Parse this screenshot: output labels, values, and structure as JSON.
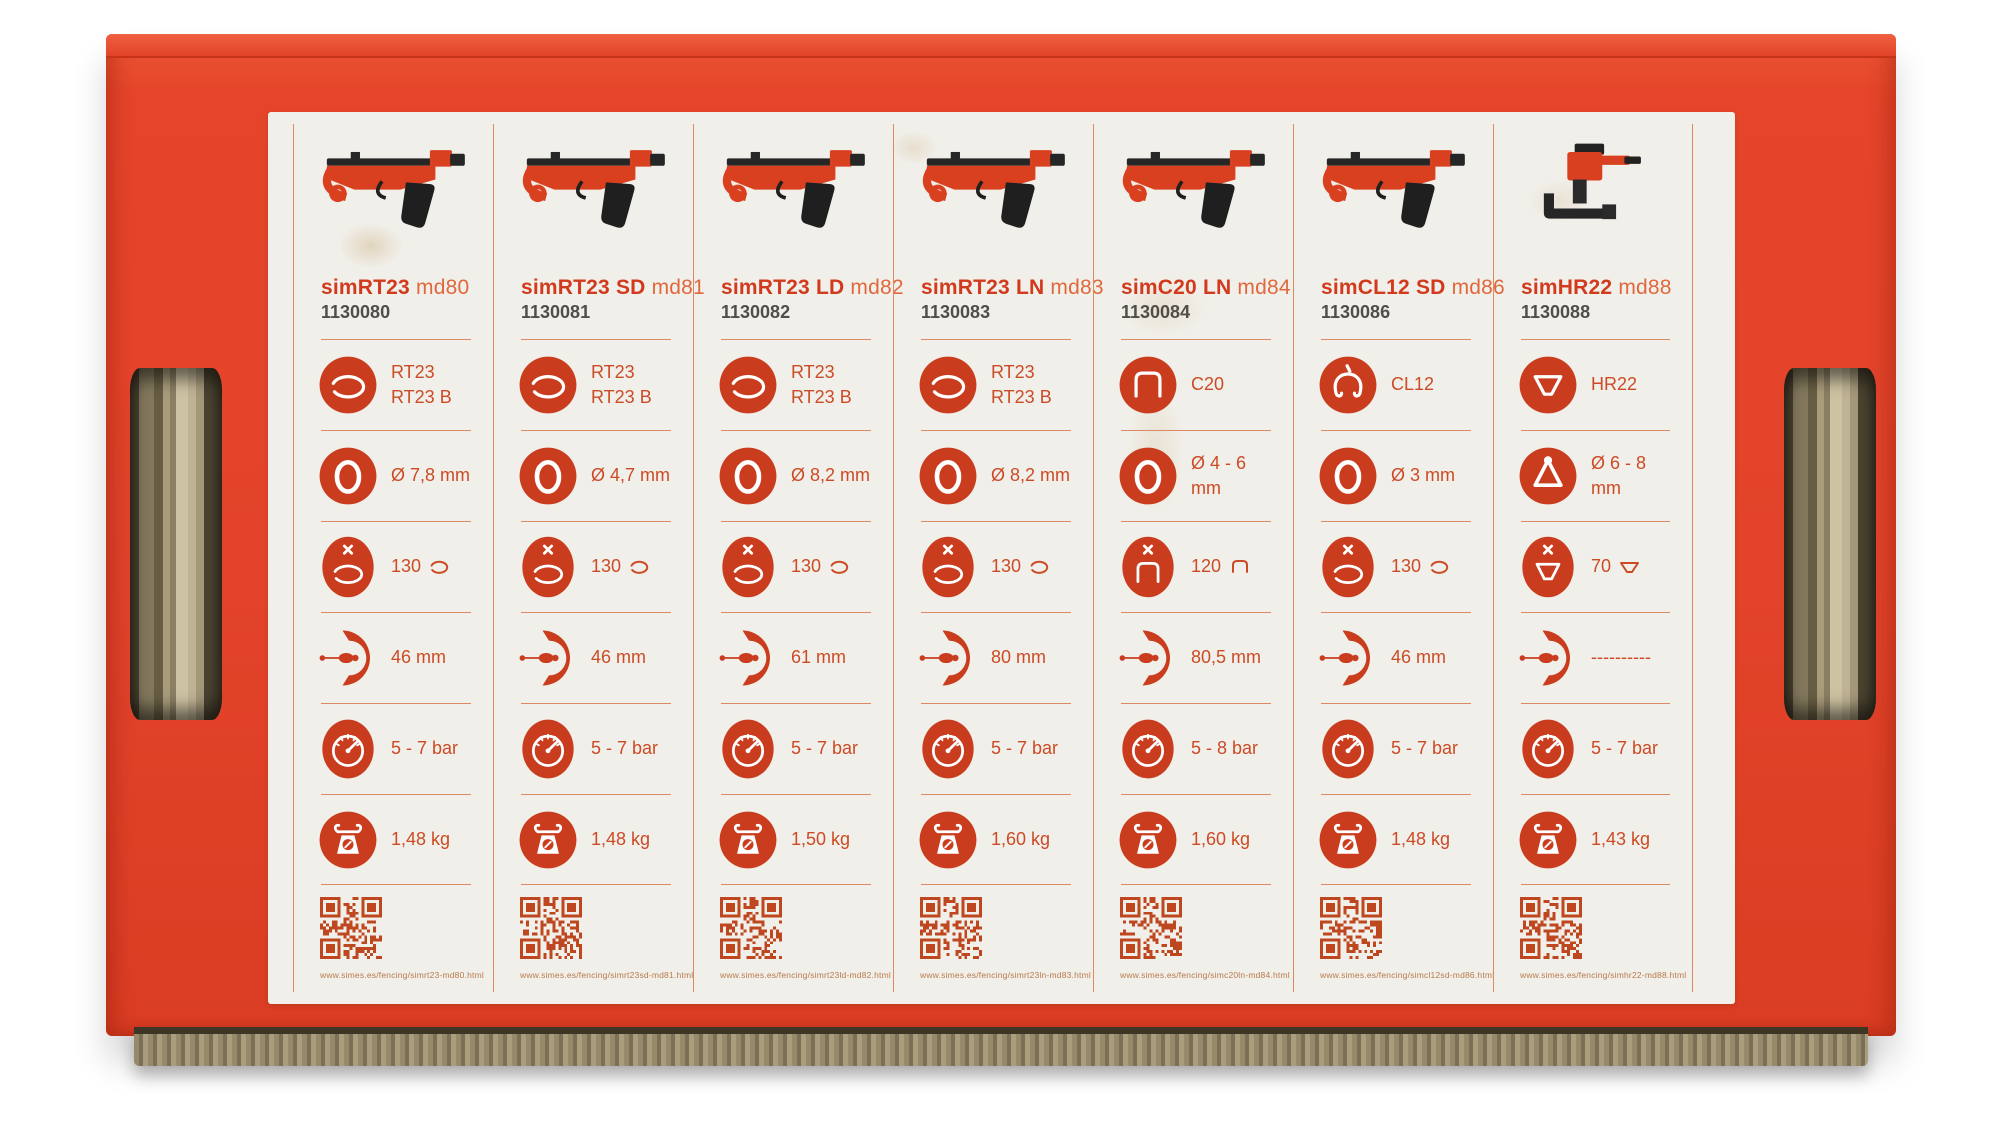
{
  "scene": {
    "description": "red cardboard tool box, front face with white comparison label",
    "box_color": "#e2432a",
    "label_bg": "#f1efe9",
    "accent_red": "#c93d1e",
    "text_red": "#cc4b26",
    "sku_gray": "#504e49",
    "line_orange": "#d98a62",
    "qr_color": "#bf4720"
  },
  "icons": {
    "ring_type": "ring-type-icon",
    "wire_diameter": "wire-diameter-icon",
    "capacity": "magazine-capacity-icon",
    "depth": "throat-depth-icon",
    "pressure": "pressure-gauge-icon",
    "weight": "weight-scale-icon",
    "qr": "qr-code"
  },
  "columns": [
    {
      "name": "simRT23",
      "model": "md80",
      "sku": "1130080",
      "variants": {
        "ring": "ring",
        "diameter": "ring",
        "capacity": "ring",
        "tool": "gun"
      },
      "specs": {
        "ring": "RT23\nRT23 B",
        "diameter": "Ø 7,8 mm",
        "capacity": "130",
        "depth": "46 mm",
        "pressure": "5 - 7 bar",
        "weight": "1,48 kg"
      },
      "url": "www.simes.es/fencing/simrt23-md80.html"
    },
    {
      "name": "simRT23 SD",
      "model": "md81",
      "sku": "1130081",
      "variants": {
        "ring": "ring",
        "diameter": "ring",
        "capacity": "ring",
        "tool": "gun"
      },
      "specs": {
        "ring": "RT23\nRT23 B",
        "diameter": "Ø 4,7 mm",
        "capacity": "130",
        "depth": "46 mm",
        "pressure": "5 - 7 bar",
        "weight": "1,48 kg"
      },
      "url": "www.simes.es/fencing/simrt23sd-md81.html"
    },
    {
      "name": "simRT23 LD",
      "model": "md82",
      "sku": "1130082",
      "variants": {
        "ring": "ring",
        "diameter": "ring",
        "capacity": "ring",
        "tool": "gun"
      },
      "specs": {
        "ring": "RT23\nRT23 B",
        "diameter": "Ø 8,2 mm",
        "capacity": "130",
        "depth": "61 mm",
        "pressure": "5 - 7 bar",
        "weight": "1,50 kg"
      },
      "url": "www.simes.es/fencing/simrt23ld-md82.html"
    },
    {
      "name": "simRT23 LN",
      "model": "md83",
      "sku": "1130083",
      "variants": {
        "ring": "ring",
        "diameter": "ring",
        "capacity": "ring",
        "tool": "gun"
      },
      "specs": {
        "ring": "RT23\nRT23 B",
        "diameter": "Ø 8,2 mm",
        "capacity": "130",
        "depth": "80 mm",
        "pressure": "5 - 7 bar",
        "weight": "1,60 kg"
      },
      "url": "www.simes.es/fencing/simrt23ln-md83.html"
    },
    {
      "name": "simC20 LN",
      "model": "md84",
      "sku": "1130084",
      "variants": {
        "ring": "staple",
        "diameter": "ring",
        "capacity": "staple",
        "tool": "gun"
      },
      "specs": {
        "ring": "C20",
        "diameter": "Ø 4 - 6 mm",
        "capacity": "120",
        "depth": "80,5 mm",
        "pressure": "5 - 8 bar",
        "weight": "1,60 kg"
      },
      "url": "www.simes.es/fencing/simc20ln-md84.html"
    },
    {
      "name": "simCL12 SD",
      "model": "md86",
      "sku": "1130086",
      "variants": {
        "ring": "clip",
        "diameter": "ring",
        "capacity": "ring",
        "tool": "gun"
      },
      "specs": {
        "ring": "CL12",
        "diameter": "Ø 3 mm",
        "capacity": "130",
        "depth": "46 mm",
        "pressure": "5 - 7 bar",
        "weight": "1,48 kg"
      },
      "url": "www.simes.es/fencing/simcl12sd-md86.html"
    },
    {
      "name": "simHR22",
      "model": "md88",
      "sku": "1130088",
      "variants": {
        "ring": "tri",
        "diameter": "tri",
        "capacity": "trap",
        "tool": "hr22"
      },
      "specs": {
        "ring": "HR22",
        "diameter": "Ø 6 - 8 mm",
        "capacity": "70",
        "depth": "----------",
        "pressure": "5 - 7 bar",
        "weight": "1,43 kg"
      },
      "url": "www.simes.es/fencing/simhr22-md88.html"
    }
  ]
}
